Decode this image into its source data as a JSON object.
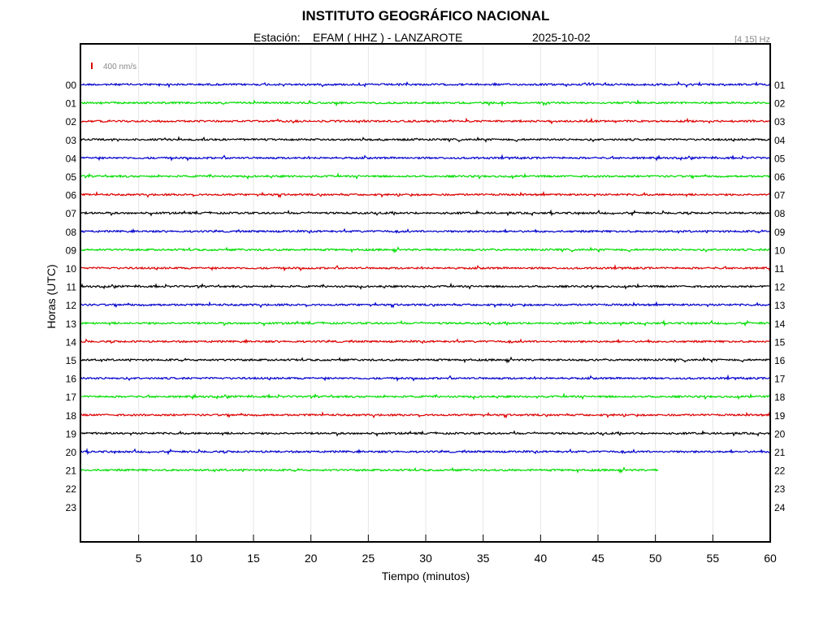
{
  "chart_data": {
    "type": "line",
    "title": "INSTITUTO GEOGRÁFICO NACIONAL",
    "station_label": "Estación:",
    "station": "EFAM ( HHZ ) - LANZAROTE",
    "date": "2025-10-02",
    "filter": "[4 15] Hz",
    "scale_label": "400 nm/s",
    "xlabel": "Tiempo (minutos)",
    "ylabel": "Horas (UTC)",
    "xlim": [
      0,
      60
    ],
    "x_ticks": [
      "5",
      "10",
      "15",
      "20",
      "25",
      "30",
      "35",
      "40",
      "45",
      "50",
      "55",
      "60"
    ],
    "grid": true,
    "hours_left": [
      "00",
      "01",
      "02",
      "03",
      "04",
      "05",
      "06",
      "07",
      "08",
      "09",
      "10",
      "11",
      "12",
      "13",
      "14",
      "15",
      "16",
      "17",
      "18",
      "19",
      "20",
      "21",
      "22",
      "23"
    ],
    "hours_right": [
      "01",
      "02",
      "03",
      "04",
      "05",
      "06",
      "07",
      "08",
      "09",
      "10",
      "11",
      "12",
      "13",
      "14",
      "15",
      "16",
      "17",
      "18",
      "19",
      "20",
      "21",
      "22",
      "23",
      "24"
    ],
    "trace_colors": [
      "#0000cc",
      "#00dd00",
      "#dd0000",
      "#000000"
    ],
    "recorded_until_minutes": [
      60,
      60,
      60,
      60,
      60,
      60,
      60,
      60,
      60,
      60,
      60,
      60,
      60,
      60,
      60,
      60,
      60,
      60,
      60,
      60,
      60,
      50.3,
      0,
      0
    ]
  }
}
